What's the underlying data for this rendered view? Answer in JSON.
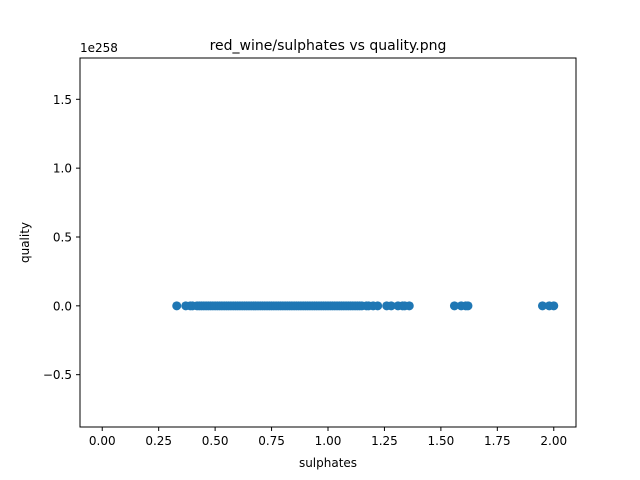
{
  "chart_data": {
    "type": "scatter",
    "title": "red_wine/sulphates vs quality.png",
    "xlabel": "sulphates",
    "ylabel": "quality",
    "offset_text": "1e258",
    "xlim": [
      -0.0985,
      2.0985
    ],
    "ylim": [
      -0.88,
      1.8
    ],
    "xticks": [
      0.0,
      0.25,
      0.5,
      0.75,
      1.0,
      1.25,
      1.5,
      1.75,
      2.0
    ],
    "xtick_labels": [
      "0.00",
      "0.25",
      "0.50",
      "0.75",
      "1.00",
      "1.25",
      "1.50",
      "1.75",
      "2.00"
    ],
    "yticks": [
      -0.5,
      0.0,
      0.5,
      1.0,
      1.5
    ],
    "ytick_labels": [
      "−0.5",
      "0.0",
      "0.5",
      "1.0",
      "1.5"
    ],
    "grid": false,
    "legend": false,
    "point_color": "#1f77b4",
    "x": [
      0.33,
      0.37,
      0.39,
      0.4,
      0.42,
      0.43,
      0.44,
      0.45,
      0.46,
      0.47,
      0.48,
      0.49,
      0.5,
      0.51,
      0.52,
      0.53,
      0.54,
      0.55,
      0.56,
      0.57,
      0.58,
      0.59,
      0.6,
      0.61,
      0.62,
      0.63,
      0.64,
      0.65,
      0.66,
      0.67,
      0.68,
      0.69,
      0.7,
      0.71,
      0.72,
      0.73,
      0.74,
      0.75,
      0.76,
      0.77,
      0.78,
      0.79,
      0.8,
      0.81,
      0.82,
      0.83,
      0.84,
      0.85,
      0.86,
      0.87,
      0.88,
      0.89,
      0.9,
      0.91,
      0.92,
      0.93,
      0.94,
      0.95,
      0.96,
      0.97,
      0.98,
      0.99,
      1.0,
      1.01,
      1.02,
      1.03,
      1.04,
      1.05,
      1.06,
      1.07,
      1.08,
      1.09,
      1.1,
      1.11,
      1.12,
      1.13,
      1.14,
      1.15,
      1.17,
      1.18,
      1.2,
      1.22,
      1.26,
      1.28,
      1.31,
      1.33,
      1.34,
      1.36,
      1.56,
      1.59,
      1.61,
      1.62,
      1.95,
      1.98,
      2.0
    ],
    "y": [
      0,
      0,
      0,
      0,
      0,
      0,
      0,
      0,
      0,
      0,
      0,
      0,
      0,
      0,
      0,
      0,
      0,
      0,
      0,
      0,
      0,
      0,
      0,
      0,
      0,
      0,
      0,
      0,
      0,
      0,
      0,
      0,
      0,
      0,
      0,
      0,
      0,
      0,
      0,
      0,
      0,
      0,
      0,
      0,
      0,
      0,
      0,
      0,
      0,
      0,
      0,
      0,
      0,
      0,
      0,
      0,
      0,
      0,
      0,
      0,
      0,
      0,
      0,
      0,
      0,
      0,
      0,
      0,
      0,
      0,
      0,
      0,
      0,
      0,
      0,
      0,
      0,
      0,
      0,
      0,
      0,
      0,
      0,
      0,
      0,
      0,
      0,
      0,
      0,
      0,
      0,
      0,
      0,
      0,
      0
    ]
  }
}
